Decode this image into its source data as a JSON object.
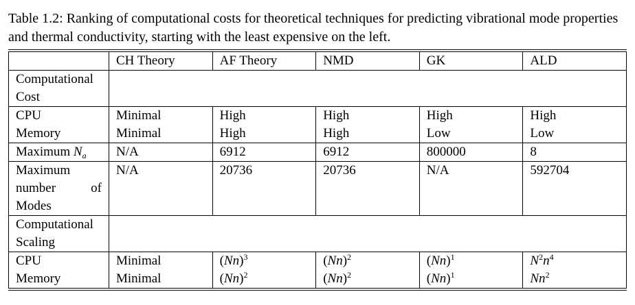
{
  "caption": "Table 1.2: Ranking of computational costs for theoretical techniques for predicting vibrational mode properties and thermal conductivity, starting with the least expensive on the left.",
  "headers": [
    "",
    "CH Theory",
    "AF Theory",
    "NMD",
    "GK",
    "ALD"
  ],
  "sections": {
    "cost_label_1": "Computational",
    "cost_label_2": "Cost",
    "scaling_label_1": "Computational",
    "scaling_label_2": "Scaling"
  },
  "cost_rows": {
    "cpu": [
      "CPU",
      "Minimal",
      "High",
      "High",
      "High",
      "High"
    ],
    "memory": [
      "Memory",
      "Minimal",
      "High",
      "High",
      "Low",
      "Low"
    ],
    "max_na_label": "Maximum",
    "max_na_symbol": "N",
    "max_na_sub": "a",
    "max_na": [
      "N/A",
      "6912",
      "6912",
      "800000",
      "8"
    ],
    "max_modes_label": [
      "Maximum",
      "number",
      "of",
      "Modes"
    ],
    "max_modes": [
      "N/A",
      "20736",
      "20736",
      "N/A",
      "592704"
    ]
  },
  "scaling_rows": {
    "cpu_label": "CPU",
    "memory_label": "Memory",
    "ch_cpu": "Minimal",
    "ch_memory": "Minimal",
    "af_cpu_exp": "3",
    "af_mem_exp": "2",
    "nmd_cpu_exp": "2",
    "nmd_mem_exp": "2",
    "gk_cpu_exp": "1",
    "gk_mem_exp": "1",
    "ald_cpu_N_exp": "2",
    "ald_cpu_n_exp": "4",
    "ald_mem_n_exp": "2"
  }
}
